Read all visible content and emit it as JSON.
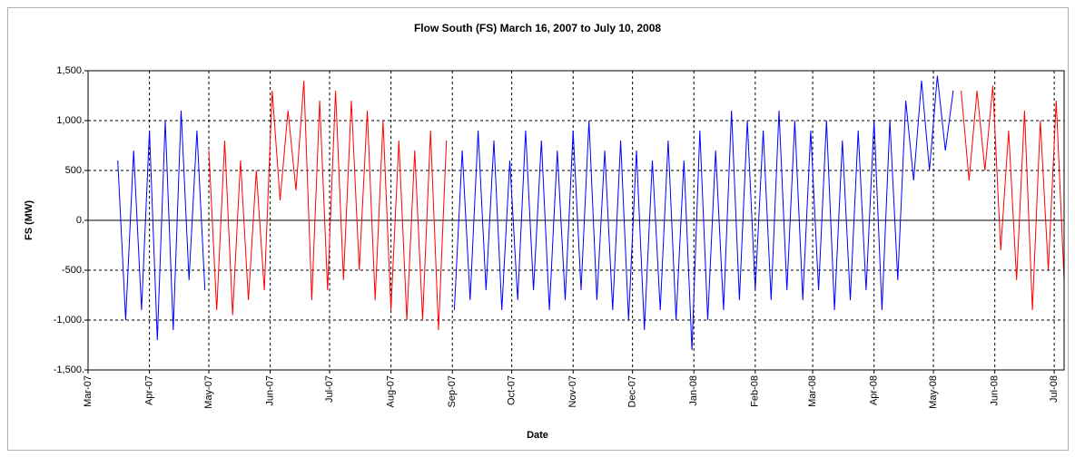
{
  "chart_data": {
    "type": "line",
    "title": "Flow South (FS) March 16, 2007 to July 10, 2008",
    "x_label": "Date",
    "y_label": "FS (MW)",
    "xlim": [
      "2007-03-01",
      "2008-07-06"
    ],
    "xticks": [
      {
        "value": "2007-03-01",
        "label": "Mar-07"
      },
      {
        "value": "2007-04-01",
        "label": "Apr-07"
      },
      {
        "value": "2007-05-01",
        "label": "May-07"
      },
      {
        "value": "2007-06-01",
        "label": "Jun-07"
      },
      {
        "value": "2007-07-01",
        "label": "Jul-07"
      },
      {
        "value": "2007-08-01",
        "label": "Aug-07"
      },
      {
        "value": "2007-09-01",
        "label": "Sep-07"
      },
      {
        "value": "2007-10-01",
        "label": "Oct-07"
      },
      {
        "value": "2007-11-01",
        "label": "Nov-07"
      },
      {
        "value": "2007-12-01",
        "label": "Dec-07"
      },
      {
        "value": "2008-01-01",
        "label": "Jan-08"
      },
      {
        "value": "2008-02-01",
        "label": "Feb-08"
      },
      {
        "value": "2008-03-01",
        "label": "Mar-08"
      },
      {
        "value": "2008-04-01",
        "label": "Apr-08"
      },
      {
        "value": "2008-05-01",
        "label": "May-08"
      },
      {
        "value": "2008-06-01",
        "label": "Jun-08"
      },
      {
        "value": "2008-07-01",
        "label": "Jul-08"
      }
    ],
    "ylim": [
      -1500,
      1500
    ],
    "yticks": [
      {
        "value": -1500,
        "label": "-1,500."
      },
      {
        "value": -1000,
        "label": "-1,000."
      },
      {
        "value": -500,
        "label": "-500."
      },
      {
        "value": 0,
        "label": "0."
      },
      {
        "value": 500,
        "label": "500."
      },
      {
        "value": 1000,
        "label": "1,000."
      },
      {
        "value": 1500,
        "label": "1,500."
      }
    ],
    "grid": true,
    "series": [
      {
        "color": "#0000ff",
        "x": [
          "2007-03-16",
          "2007-03-20",
          "2007-03-24",
          "2007-03-28",
          "2007-04-01",
          "2007-04-05",
          "2007-04-09",
          "2007-04-13",
          "2007-04-17",
          "2007-04-21",
          "2007-04-25",
          "2007-04-29"
        ],
        "values": [
          600,
          -1000,
          700,
          -900,
          900,
          -1200,
          1000,
          -1100,
          1100,
          -600,
          900,
          -700
        ]
      },
      {
        "color": "#ff0000",
        "x": [
          "2007-05-01",
          "2007-05-05",
          "2007-05-09",
          "2007-05-13",
          "2007-05-17",
          "2007-05-21",
          "2007-05-25",
          "2007-05-29",
          "2007-06-02",
          "2007-06-06",
          "2007-06-10",
          "2007-06-14",
          "2007-06-18",
          "2007-06-22",
          "2007-06-26",
          "2007-06-30",
          "2007-07-04",
          "2007-07-08",
          "2007-07-12",
          "2007-07-16",
          "2007-07-20",
          "2007-07-24",
          "2007-07-28",
          "2007-08-01",
          "2007-08-05",
          "2007-08-09",
          "2007-08-13",
          "2007-08-17",
          "2007-08-21",
          "2007-08-25",
          "2007-08-29"
        ],
        "values": [
          700,
          -900,
          800,
          -950,
          600,
          -800,
          500,
          -700,
          1300,
          200,
          1100,
          300,
          1400,
          -800,
          1200,
          -700,
          1300,
          -600,
          1200,
          -500,
          1100,
          -800,
          1000,
          -900,
          800,
          -1000,
          700,
          -1000,
          900,
          -1100,
          800
        ]
      },
      {
        "color": "#0000ff",
        "x": [
          "2007-09-02",
          "2007-09-06",
          "2007-09-10",
          "2007-09-14",
          "2007-09-18",
          "2007-09-22",
          "2007-09-26",
          "2007-09-30",
          "2007-10-04",
          "2007-10-08",
          "2007-10-12",
          "2007-10-16",
          "2007-10-20",
          "2007-10-24",
          "2007-10-28",
          "2007-11-01",
          "2007-11-05",
          "2007-11-09",
          "2007-11-13",
          "2007-11-17",
          "2007-11-21",
          "2007-11-25",
          "2007-11-29",
          "2007-12-03",
          "2007-12-07",
          "2007-12-11",
          "2007-12-15",
          "2007-12-19",
          "2007-12-23",
          "2007-12-27",
          "2007-12-31",
          "2008-01-04",
          "2008-01-08",
          "2008-01-12",
          "2008-01-16",
          "2008-01-20",
          "2008-01-24",
          "2008-01-28",
          "2008-02-01",
          "2008-02-05",
          "2008-02-09",
          "2008-02-13",
          "2008-02-17",
          "2008-02-21",
          "2008-02-25",
          "2008-02-29",
          "2008-03-04",
          "2008-03-08",
          "2008-03-12",
          "2008-03-16",
          "2008-03-20",
          "2008-03-24",
          "2008-03-28",
          "2008-04-01",
          "2008-04-05",
          "2008-04-09",
          "2008-04-13",
          "2008-04-17",
          "2008-04-21",
          "2008-04-25",
          "2008-04-29",
          "2008-05-03",
          "2008-05-07",
          "2008-05-11"
        ],
        "values": [
          -900,
          700,
          -800,
          900,
          -700,
          800,
          -900,
          600,
          -800,
          900,
          -700,
          800,
          -900,
          700,
          -800,
          900,
          -700,
          1000,
          -800,
          700,
          -900,
          800,
          -1000,
          700,
          -1100,
          600,
          -900,
          800,
          -1000,
          600,
          -1300,
          900,
          -1000,
          700,
          -900,
          1100,
          -800,
          1000,
          -700,
          900,
          -800,
          1100,
          -700,
          1000,
          -800,
          900,
          -700,
          1000,
          -900,
          800,
          -800,
          900,
          -700,
          1000,
          -900,
          1000,
          -600,
          1200,
          400,
          1400,
          500,
          1450,
          700,
          1300
        ]
      },
      {
        "color": "#ff0000",
        "x": [
          "2008-05-15",
          "2008-05-19",
          "2008-05-23",
          "2008-05-27",
          "2008-05-31",
          "2008-06-04",
          "2008-06-08",
          "2008-06-12",
          "2008-06-16",
          "2008-06-20",
          "2008-06-24",
          "2008-06-28",
          "2008-07-02",
          "2008-07-06",
          "2008-07-10"
        ],
        "values": [
          1300,
          400,
          1300,
          500,
          1350,
          -300,
          900,
          -600,
          1100,
          -900,
          1000,
          -500,
          1200,
          -600,
          1000
        ]
      }
    ]
  }
}
